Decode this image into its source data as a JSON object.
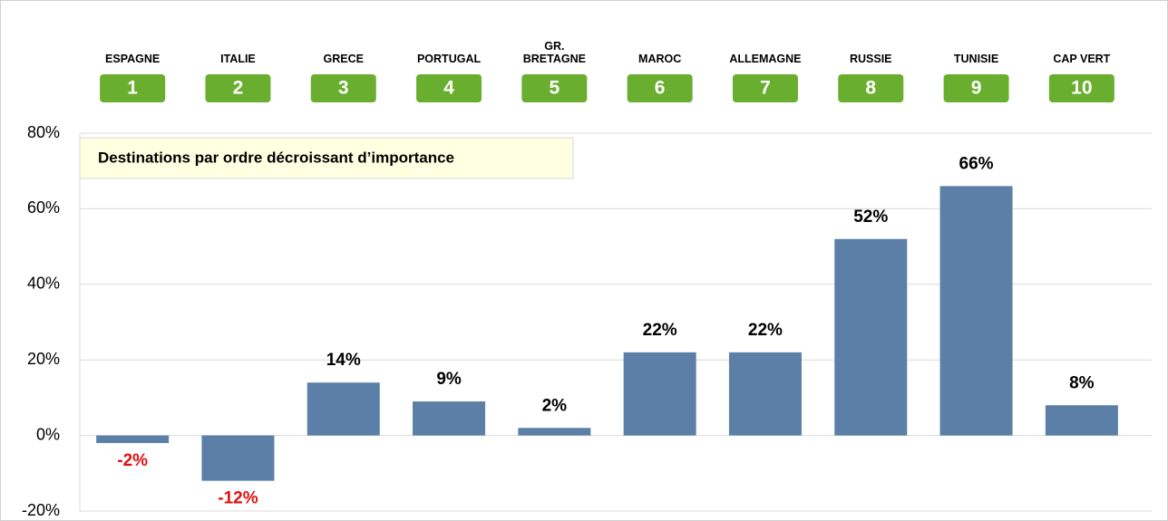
{
  "chart_data": {
    "type": "bar",
    "annotation": "Destinations par ordre décroissant d’importance",
    "categories": [
      "ESPAGNE",
      "ITALIE",
      "GRECE",
      "PORTUGAL",
      "GR. BRETAGNE",
      "MAROC",
      "ALLEMAGNE",
      "RUSSIE",
      "TUNISIE",
      "CAP VERT"
    ],
    "ranks": [
      1,
      2,
      3,
      4,
      5,
      6,
      7,
      8,
      9,
      10
    ],
    "values": [
      -2,
      -12,
      14,
      9,
      2,
      22,
      22,
      52,
      66,
      8
    ],
    "value_labels": [
      "-2%",
      "-12%",
      "14%",
      "9%",
      "2%",
      "22%",
      "22%",
      "52%",
      "66%",
      "8%"
    ],
    "color": "#5b7fa6",
    "rank_color": "#6aae30",
    "label_color": "#000000",
    "negative_label_color": "#e31010",
    "ylim": [
      -20,
      80
    ],
    "yticks": [
      {
        "value": -20,
        "label": "-20%"
      },
      {
        "value": 0,
        "label": "0%"
      },
      {
        "value": 20,
        "label": "20%"
      },
      {
        "value": 40,
        "label": "40%"
      },
      {
        "value": 60,
        "label": "60%"
      },
      {
        "value": 80,
        "label": "80%"
      }
    ],
    "grid": true
  }
}
